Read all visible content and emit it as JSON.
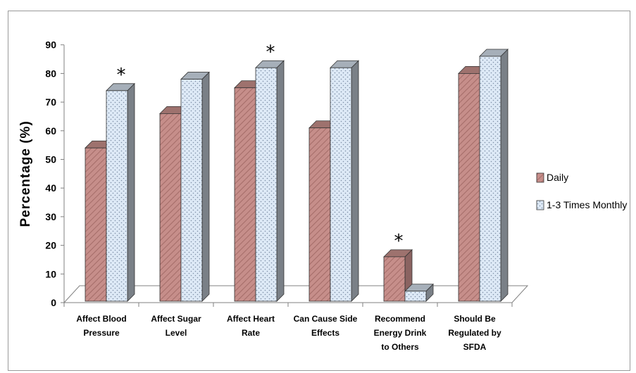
{
  "chart_data": {
    "type": "bar",
    "ylabel": "Percentage (%)",
    "ylim": [
      0,
      90
    ],
    "yticks": [
      "0",
      "10",
      "20",
      "30",
      "40",
      "50",
      "60",
      "70",
      "80",
      "90"
    ],
    "categories": [
      [
        "Affect Blood",
        "Pressure"
      ],
      [
        "Affect Sugar",
        "Level"
      ],
      [
        "Affect Heart",
        "Rate"
      ],
      [
        "Can Cause Side",
        "Effects"
      ],
      [
        "Recommend",
        "Energy Drink",
        "to Others"
      ],
      [
        "Should Be",
        "Regulated by",
        "SFDA"
      ]
    ],
    "series": [
      {
        "name": "Daily",
        "values": [
          54,
          66,
          75,
          61,
          16,
          80
        ],
        "color": "#c68e8a"
      },
      {
        "name": "1-3 Times Monthly",
        "values": [
          74,
          78,
          82,
          82,
          4,
          86
        ],
        "color": "#dde9f6"
      }
    ],
    "significance": [
      {
        "category_index": 0,
        "label": "*"
      },
      {
        "category_index": 2,
        "label": "*"
      },
      {
        "category_index": 4,
        "label": "*"
      }
    ],
    "grid": false,
    "legend_position": "right"
  }
}
